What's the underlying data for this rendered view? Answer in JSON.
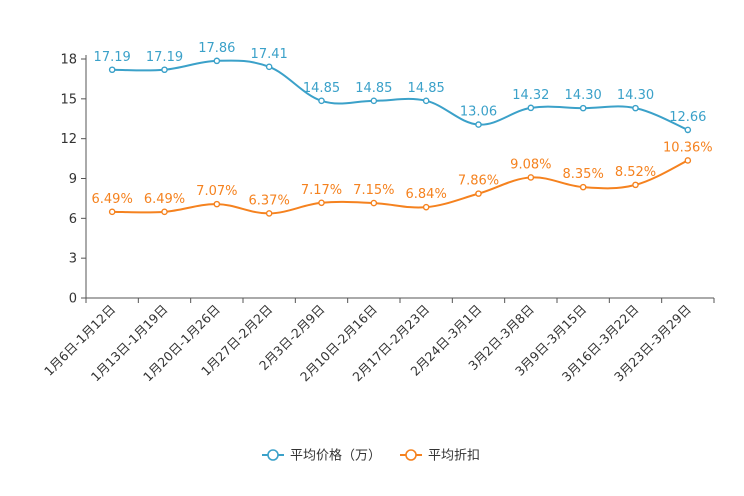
{
  "chart_data": {
    "type": "line",
    "title": "",
    "xlabel": "",
    "ylabel": "",
    "ylim": [
      0,
      18
    ],
    "yticks": [
      0,
      3,
      6,
      9,
      12,
      15,
      18
    ],
    "grid": false,
    "legend_position": "bottom-center",
    "categories": [
      "1月6日-1月12日",
      "1月13日-1月19日",
      "1月20日-1月26日",
      "1月27日-2月2日",
      "2月3日-2月9日",
      "2月10日-2月16日",
      "2月17日-2月23日",
      "2月24日-3月1日",
      "3月2日-3月8日",
      "3月9日-3月15日",
      "3月16日-3月22日",
      "3月23日-3月29日"
    ],
    "series": [
      {
        "name": "平均价格（万）",
        "color": "#3ba1c9",
        "values": [
          17.19,
          17.19,
          17.86,
          17.41,
          14.85,
          14.85,
          14.85,
          13.06,
          14.32,
          14.3,
          14.3,
          12.66
        ],
        "labels": [
          "17.19",
          "17.19",
          "17.86",
          "17.41",
          "14.85",
          "14.85",
          "14.85",
          "13.06",
          "14.32",
          "14.30",
          "14.30",
          "12.66"
        ]
      },
      {
        "name": "平均折扣",
        "color": "#f5821f",
        "values": [
          6.49,
          6.49,
          7.07,
          6.37,
          7.17,
          7.15,
          6.84,
          7.86,
          9.08,
          8.35,
          8.52,
          10.36
        ],
        "labels": [
          "6.49%",
          "6.49%",
          "7.07%",
          "6.37%",
          "7.17%",
          "7.15%",
          "6.84%",
          "7.86%",
          "9.08%",
          "8.35%",
          "8.52%",
          "10.36%"
        ]
      }
    ]
  }
}
